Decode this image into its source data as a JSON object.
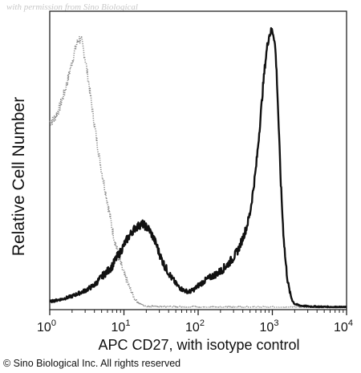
{
  "watermark": "with permission from Sino Biological",
  "copyright": "© Sino Biological Inc. All rights reserved",
  "chart_data": {
    "type": "line",
    "title": "",
    "xlabel": "APC CD27, with isotype control",
    "ylabel": "Relative Cell Number",
    "x_scale": "log",
    "xlim": [
      1,
      10000
    ],
    "ylim": [
      0,
      1
    ],
    "x_ticks": [
      {
        "base": "10",
        "exp": "0"
      },
      {
        "base": "10",
        "exp": "1"
      },
      {
        "base": "10",
        "exp": "2"
      },
      {
        "base": "10",
        "exp": "3"
      },
      {
        "base": "10",
        "exp": "4"
      }
    ],
    "grid": false,
    "legend": "none",
    "series": [
      {
        "role": "isotype-control",
        "style": "dotted",
        "color": "#8a8a8a",
        "x": [
          1,
          1.15,
          1.35,
          1.6,
          1.85,
          2.1,
          2.3,
          2.5,
          2.7,
          3.0,
          3.4,
          4.0,
          4.8,
          5.8,
          7.0,
          8.5,
          10,
          12,
          14,
          17,
          20,
          25,
          40,
          100,
          1000,
          10000
        ],
        "y": [
          0.67,
          0.68,
          0.72,
          0.78,
          0.85,
          0.91,
          0.95,
          0.97,
          0.96,
          0.9,
          0.8,
          0.66,
          0.52,
          0.4,
          0.28,
          0.18,
          0.12,
          0.07,
          0.03,
          0.01,
          0.005,
          0.003,
          0.002,
          0.001,
          0.0,
          0.0
        ]
      },
      {
        "role": "apc-cd27",
        "style": "solid",
        "color": "#111111",
        "x": [
          1,
          1.5,
          2,
          3,
          4,
          5,
          6,
          7,
          8,
          9,
          10,
          11,
          12,
          13,
          14,
          15,
          16,
          17,
          18,
          19,
          20,
          21,
          22,
          23,
          24,
          25,
          26,
          27,
          28,
          29,
          30,
          32,
          34,
          36,
          38,
          40,
          42,
          44,
          46,
          48,
          50,
          52,
          54,
          56,
          58,
          60,
          65,
          70,
          75,
          80,
          90,
          100,
          115,
          130,
          150,
          175,
          200,
          230,
          260,
          300,
          350,
          400,
          450,
          500,
          550,
          600,
          650,
          700,
          750,
          800,
          850,
          900,
          950,
          1000,
          1050,
          1100,
          1150,
          1200,
          1250,
          1300,
          1400,
          1500,
          1600,
          1700,
          1800,
          1900,
          2000,
          2200,
          2500,
          3000,
          4000,
          6000,
          10000
        ],
        "y": [
          0.02,
          0.03,
          0.04,
          0.06,
          0.08,
          0.11,
          0.13,
          0.15,
          0.18,
          0.2,
          0.225,
          0.245,
          0.26,
          0.275,
          0.285,
          0.29,
          0.295,
          0.3,
          0.3,
          0.295,
          0.29,
          0.285,
          0.28,
          0.27,
          0.26,
          0.25,
          0.24,
          0.23,
          0.22,
          0.205,
          0.195,
          0.175,
          0.16,
          0.145,
          0.135,
          0.125,
          0.115,
          0.105,
          0.1,
          0.093,
          0.085,
          0.08,
          0.075,
          0.072,
          0.068,
          0.066,
          0.06,
          0.058,
          0.056,
          0.058,
          0.066,
          0.078,
          0.09,
          0.1,
          0.11,
          0.12,
          0.13,
          0.145,
          0.16,
          0.18,
          0.21,
          0.25,
          0.29,
          0.34,
          0.42,
          0.5,
          0.6,
          0.7,
          0.8,
          0.88,
          0.94,
          0.98,
          0.995,
          1.0,
          0.98,
          0.93,
          0.83,
          0.7,
          0.57,
          0.45,
          0.28,
          0.17,
          0.1,
          0.06,
          0.035,
          0.02,
          0.012,
          0.008,
          0.005,
          0.003,
          0.002,
          0.001,
          0.0
        ]
      }
    ]
  }
}
